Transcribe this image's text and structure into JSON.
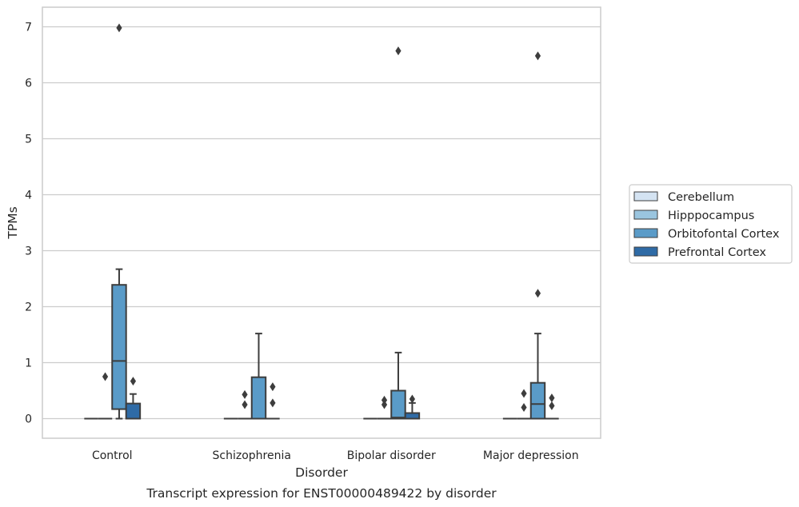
{
  "chart_data": {
    "type": "box",
    "ylabel": "TPMs",
    "xlabel": "Disorder",
    "caption": "Transcript expression for ENST00000489422 by disorder",
    "ylim": [
      -0.35,
      7.35
    ],
    "yticks": [
      0,
      1,
      2,
      3,
      4,
      5,
      6,
      7
    ],
    "categories": [
      "Control",
      "Schizophrenia",
      "Bipolar disorder",
      "Major depression"
    ],
    "grid": "horizontal",
    "legend_position": "right",
    "series": [
      {
        "name": "Cerebellum",
        "color": "#d4e3f2",
        "boxes": [
          {
            "q1": 0,
            "median": 0,
            "q3": 0,
            "whisker_low": 0,
            "whisker_high": 0,
            "outliers": []
          },
          {
            "q1": 0,
            "median": 0,
            "q3": 0,
            "whisker_low": 0,
            "whisker_high": 0,
            "outliers": []
          },
          {
            "q1": 0,
            "median": 0,
            "q3": 0,
            "whisker_low": 0,
            "whisker_high": 0,
            "outliers": []
          },
          {
            "q1": 0,
            "median": 0,
            "q3": 0,
            "whisker_low": 0,
            "whisker_high": 0,
            "outliers": []
          }
        ]
      },
      {
        "name": "Hipppocampus",
        "color": "#9ac5df",
        "boxes": [
          {
            "q1": 0,
            "median": 0,
            "q3": 0,
            "whisker_low": 0,
            "whisker_high": 0,
            "outliers": [
              0.75
            ]
          },
          {
            "q1": 0,
            "median": 0,
            "q3": 0,
            "whisker_low": 0,
            "whisker_high": 0,
            "outliers": [
              0.25,
              0.43
            ]
          },
          {
            "q1": 0,
            "median": 0,
            "q3": 0,
            "whisker_low": 0,
            "whisker_high": 0,
            "outliers": [
              0.25,
              0.33
            ]
          },
          {
            "q1": 0,
            "median": 0,
            "q3": 0,
            "whisker_low": 0,
            "whisker_high": 0,
            "outliers": [
              0.2,
              0.45
            ]
          }
        ]
      },
      {
        "name": "Orbitofontal Cortex",
        "color": "#5a9bc8",
        "boxes": [
          {
            "q1": 0.17,
            "median": 1.03,
            "q3": 2.39,
            "whisker_low": 0,
            "whisker_high": 2.67,
            "outliers": [
              6.98
            ]
          },
          {
            "q1": 0,
            "median": 0,
            "q3": 0.74,
            "whisker_low": 0,
            "whisker_high": 1.52,
            "outliers": []
          },
          {
            "q1": 0,
            "median": 0.02,
            "q3": 0.5,
            "whisker_low": 0,
            "whisker_high": 1.18,
            "outliers": [
              6.57
            ]
          },
          {
            "q1": 0,
            "median": 0.26,
            "q3": 0.64,
            "whisker_low": 0,
            "whisker_high": 1.52,
            "outliers": [
              2.24,
              6.48
            ]
          }
        ]
      },
      {
        "name": "Prefrontal Cortex",
        "color": "#2f6ba6",
        "boxes": [
          {
            "q1": 0,
            "median": 0,
            "q3": 0.27,
            "whisker_low": 0,
            "whisker_high": 0.44,
            "outliers": [
              0.67
            ]
          },
          {
            "q1": 0,
            "median": 0,
            "q3": 0,
            "whisker_low": 0,
            "whisker_high": 0,
            "outliers": [
              0.28,
              0.57
            ]
          },
          {
            "q1": 0,
            "median": 0,
            "q3": 0.1,
            "whisker_low": 0,
            "whisker_high": 0.28,
            "outliers": [
              0.35
            ]
          },
          {
            "q1": 0,
            "median": 0,
            "q3": 0,
            "whisker_low": 0,
            "whisker_high": 0,
            "outliers": [
              0.23,
              0.37
            ]
          }
        ]
      }
    ]
  }
}
